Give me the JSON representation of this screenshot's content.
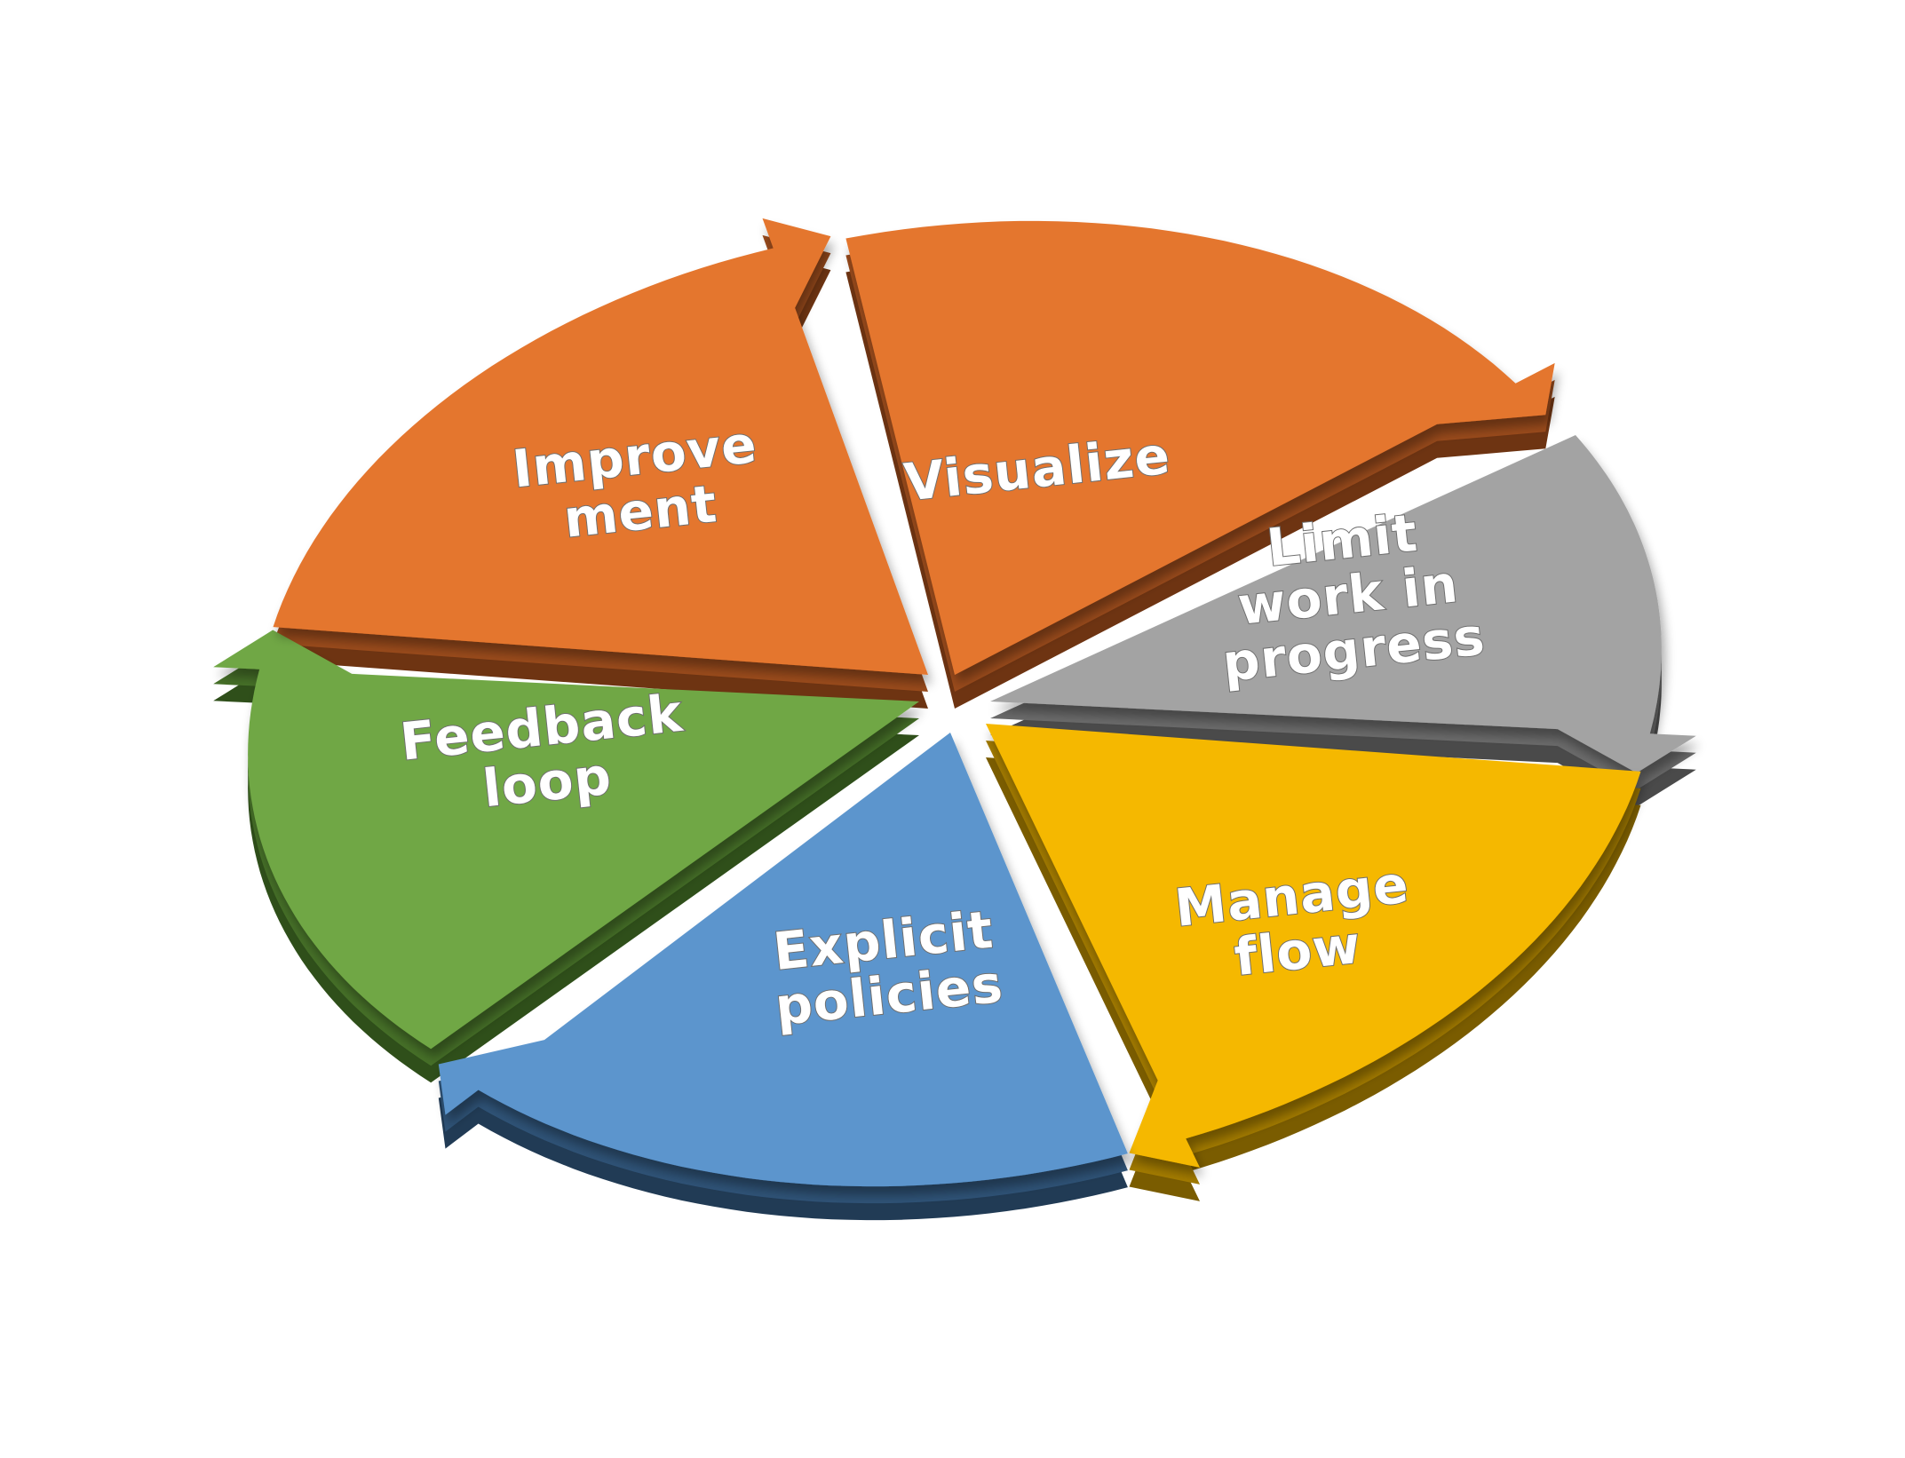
{
  "diagram": {
    "segments": [
      {
        "id": "visualize",
        "lines": [
          "Visualize"
        ],
        "color": "#E4762F",
        "shade": "#9A4B1C",
        "dark": "#6E3412"
      },
      {
        "id": "limit-wip",
        "lines": [
          "Limit",
          "work in",
          "progress"
        ],
        "color": "#A3A3A3",
        "shade": "#6B6B6B",
        "dark": "#4A4A4A"
      },
      {
        "id": "manage-flow",
        "lines": [
          "Manage",
          "flow"
        ],
        "color": "#F5B800",
        "shade": "#A37B00",
        "dark": "#7A5C00"
      },
      {
        "id": "explicit-policies",
        "lines": [
          "Explicit",
          "policies"
        ],
        "color": "#5B95CD",
        "shade": "#2F5377",
        "dark": "#213B55"
      },
      {
        "id": "feedback-loop",
        "lines": [
          "Feedback",
          "loop"
        ],
        "color": "#6FA745",
        "shade": "#467028",
        "dark": "#2F4F1A"
      },
      {
        "id": "improvement",
        "lines": [
          "Improve",
          "ment"
        ],
        "color": "#E4762F",
        "shade": "#9A4B1C",
        "dark": "#6E3412"
      }
    ]
  }
}
